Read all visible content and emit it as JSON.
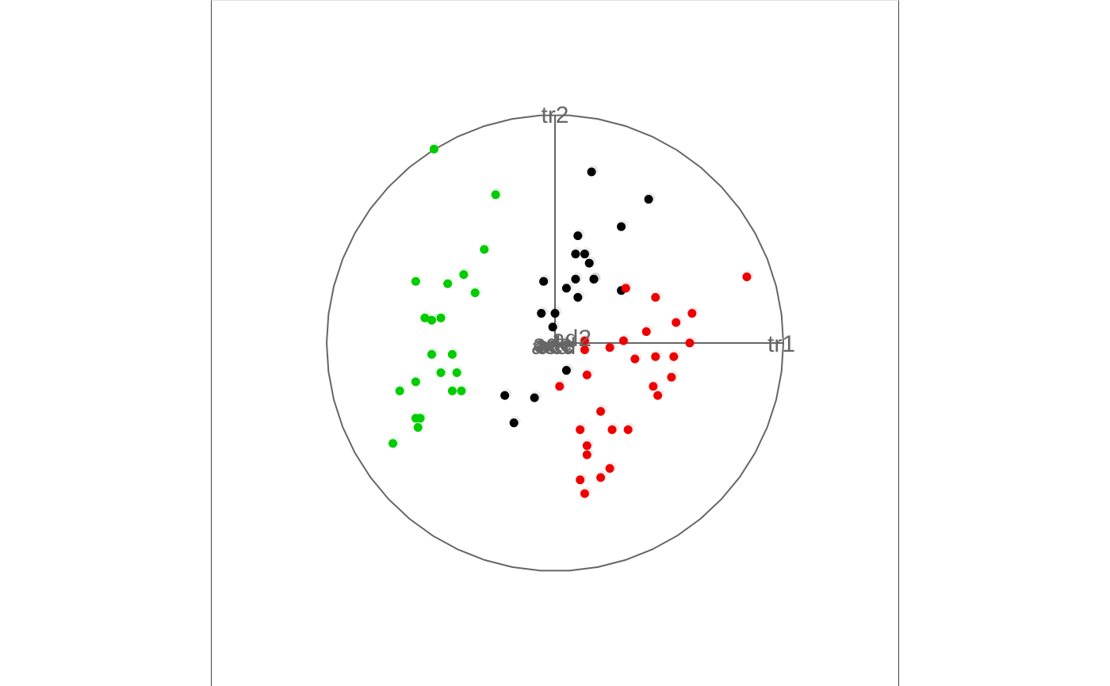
{
  "chart_data": {
    "type": "scatter",
    "title": "",
    "axis_labels": [
      "tr1",
      "tr2"
    ],
    "center_labels": [
      "acd",
      "ade",
      "acd",
      "ade",
      "aee",
      "ad2"
    ],
    "xlim": [
      -1.0,
      1.0
    ],
    "ylim": [
      -1.0,
      1.0
    ],
    "unit_circle": true,
    "grid": false,
    "legend": "none",
    "colors": {
      "black": "#000000",
      "red": "#ee0000",
      "green": "#00cc00",
      "axis": "#666666",
      "border": "#444444"
    },
    "series": [
      {
        "color": "#000000",
        "x": [
          0.16,
          0.41,
          0.29,
          0.1,
          0.09,
          0.13,
          0.15,
          0.17,
          -0.05,
          0.09,
          0.17,
          0.05,
          0.1,
          0.29,
          -0.06,
          0.0,
          -0.01,
          0.05,
          -0.22,
          -0.09,
          -0.18
        ],
        "y": [
          0.75,
          0.63,
          0.51,
          0.47,
          0.39,
          0.39,
          0.35,
          0.28,
          0.27,
          0.28,
          0.28,
          0.24,
          0.2,
          0.23,
          0.13,
          0.13,
          0.07,
          -0.12,
          -0.23,
          -0.24,
          -0.35
        ]
      },
      {
        "color": "#ee0000",
        "x": [
          0.84,
          0.31,
          0.44,
          0.53,
          0.6,
          0.4,
          0.3,
          0.13,
          0.24,
          0.13,
          0.52,
          0.44,
          0.35,
          0.59,
          0.14,
          0.51,
          0.43,
          0.45,
          0.02,
          0.2,
          0.11,
          0.25,
          0.14,
          0.32,
          0.14,
          0.24,
          0.2,
          0.11,
          0.13
        ],
        "y": [
          0.29,
          0.24,
          0.2,
          0.09,
          0.13,
          0.05,
          0.01,
          0.01,
          -0.02,
          -0.03,
          -0.06,
          -0.06,
          -0.07,
          0.0,
          -0.14,
          -0.15,
          -0.19,
          -0.23,
          -0.19,
          -0.3,
          -0.38,
          -0.38,
          -0.45,
          -0.38,
          -0.49,
          -0.55,
          -0.59,
          -0.6,
          -0.66
        ]
      },
      {
        "color": "#00cc00",
        "x": [
          -0.53,
          -0.26,
          -0.31,
          -0.61,
          -0.47,
          -0.4,
          -0.35,
          -0.57,
          -0.5,
          -0.54,
          -0.54,
          -0.45,
          -0.5,
          -0.43,
          -0.61,
          -0.45,
          -0.41,
          -0.68,
          -0.61,
          -0.59,
          -0.6,
          -0.71
        ],
        "y": [
          0.85,
          0.65,
          0.41,
          0.27,
          0.26,
          0.3,
          0.22,
          0.11,
          0.11,
          0.1,
          -0.05,
          -0.05,
          -0.13,
          -0.13,
          -0.17,
          -0.21,
          -0.21,
          -0.21,
          -0.33,
          -0.33,
          -0.37,
          -0.44
        ]
      }
    ]
  }
}
